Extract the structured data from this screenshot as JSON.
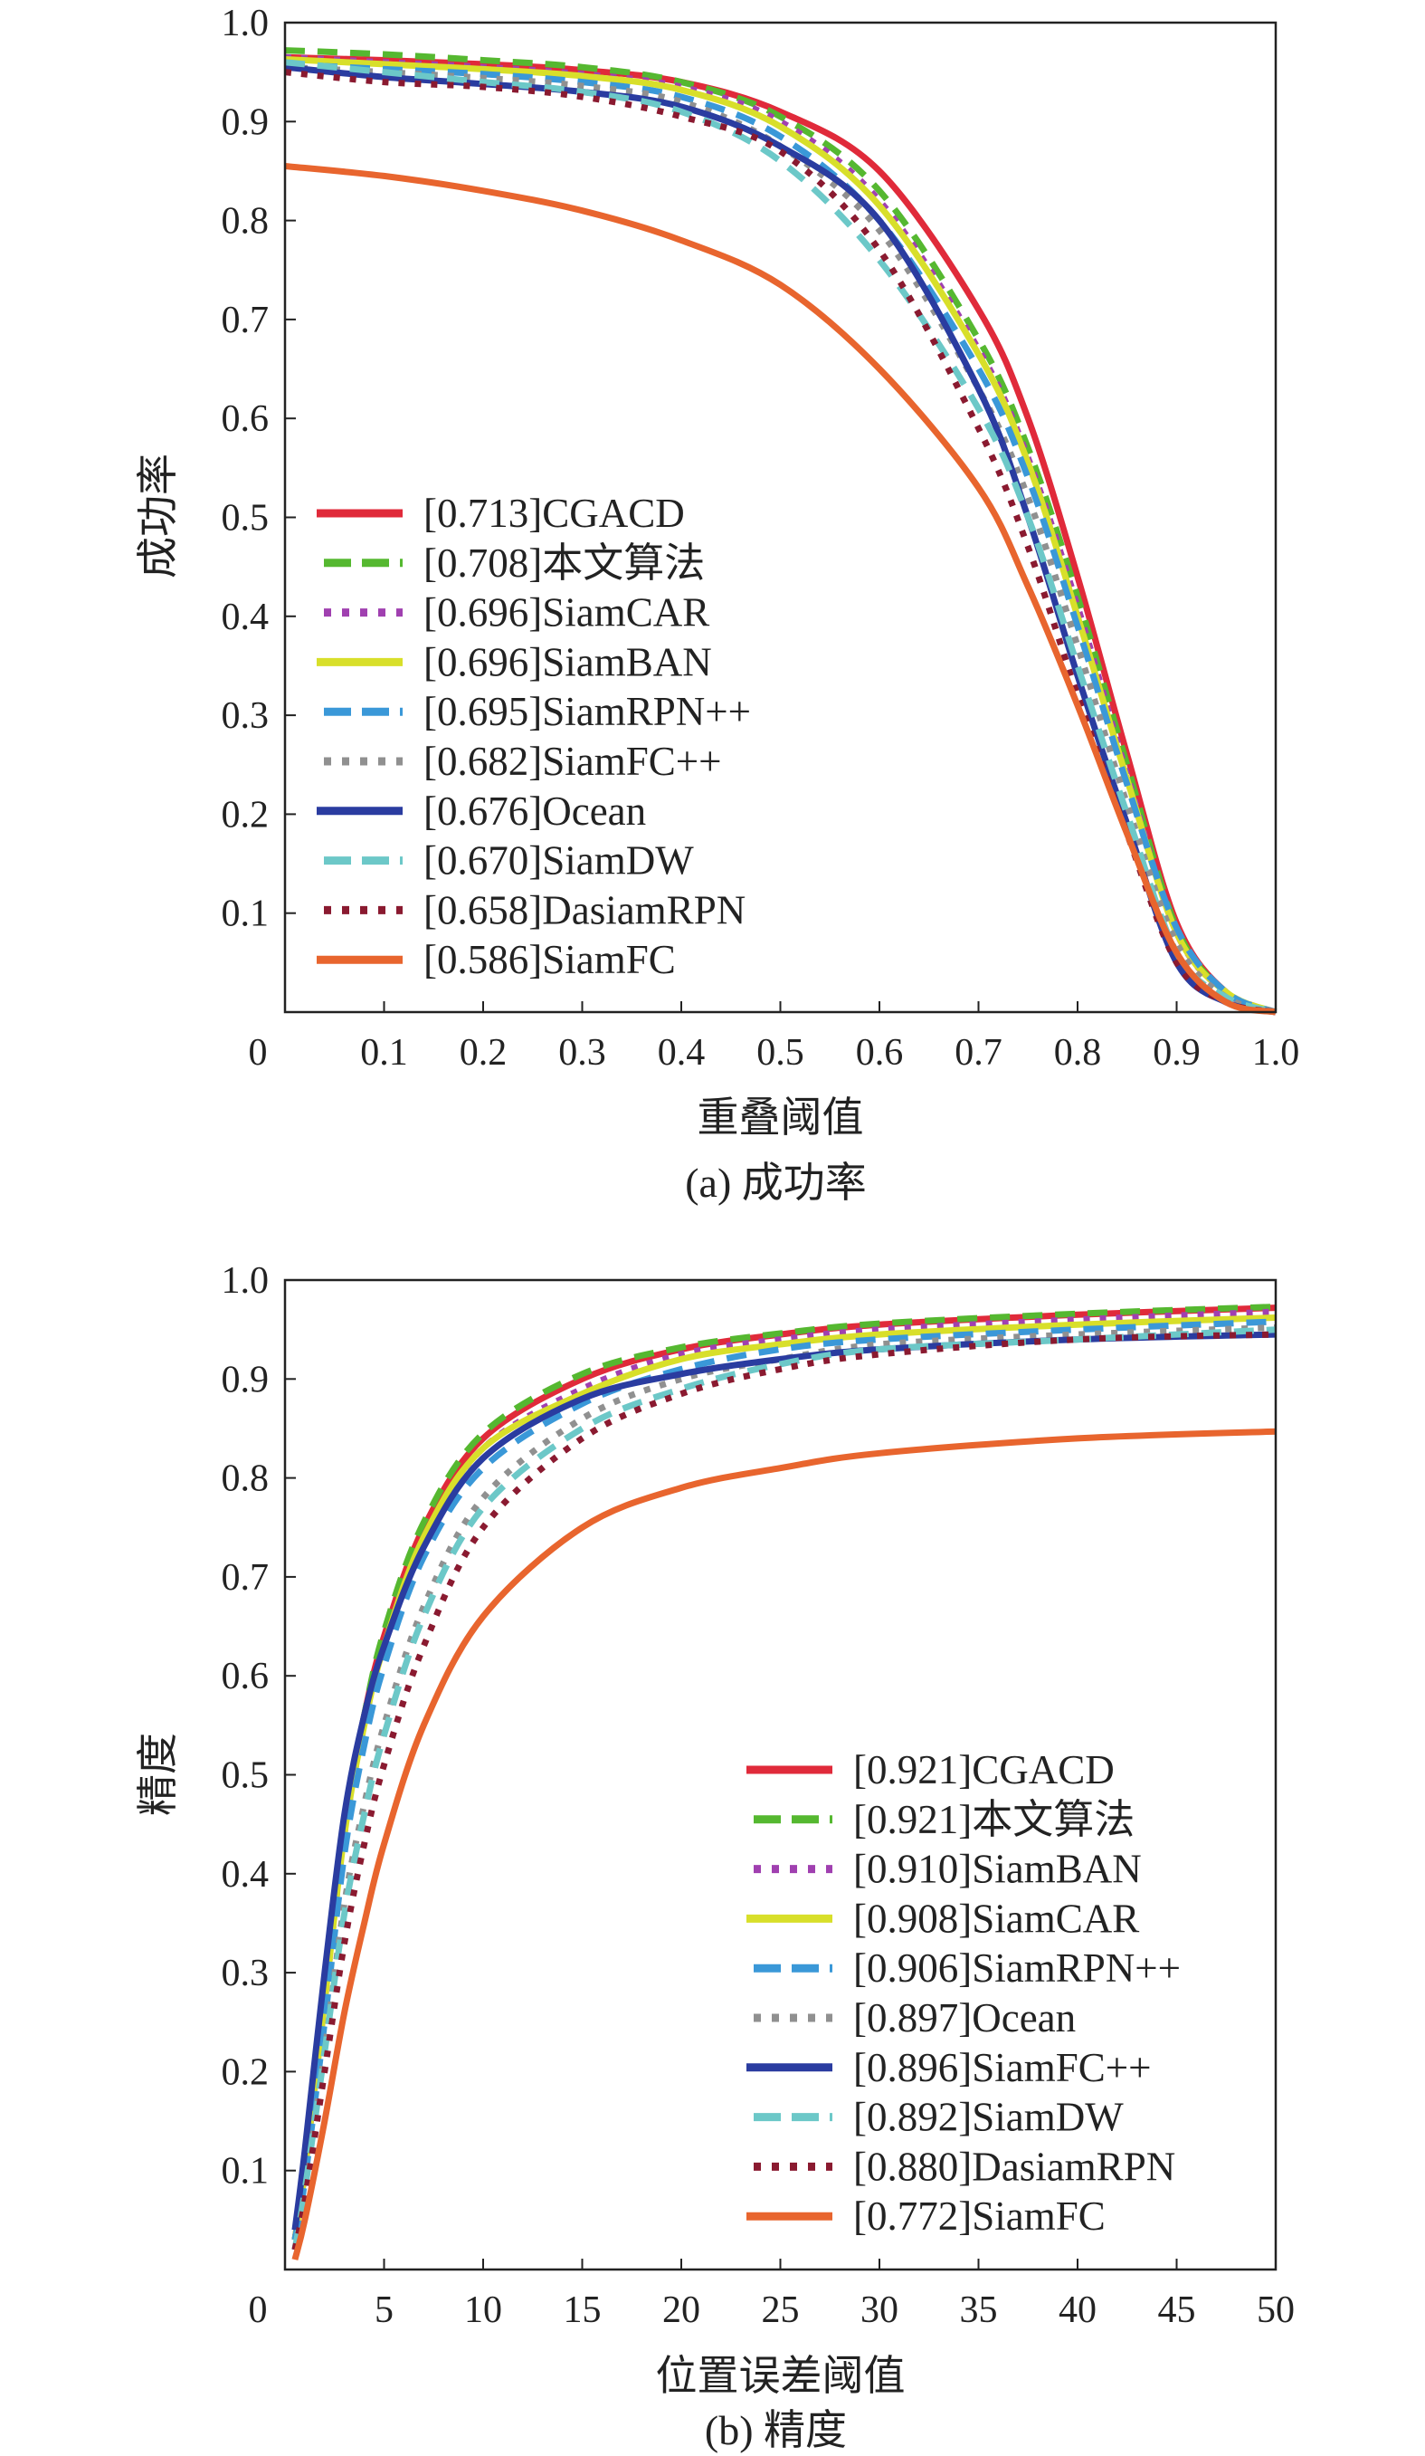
{
  "chart_data": [
    {
      "type": "line",
      "caption": "(a) 成功率",
      "xlabel": "重叠阈值",
      "ylabel": "成功率",
      "xlim": [
        0,
        1.0
      ],
      "ylim": [
        0,
        1.0
      ],
      "origin_label": "0",
      "xticks": [
        "0.1",
        "0.2",
        "0.3",
        "0.4",
        "0.5",
        "0.6",
        "0.7",
        "0.8",
        "0.9",
        "1.0"
      ],
      "yticks": [
        "0.1",
        "0.2",
        "0.3",
        "0.4",
        "0.5",
        "0.6",
        "0.7",
        "0.8",
        "0.9",
        "1.0"
      ],
      "legend_position": "center-left",
      "x": [
        0,
        0.1,
        0.2,
        0.3,
        0.4,
        0.5,
        0.6,
        0.7,
        0.75,
        0.8,
        0.85,
        0.9,
        0.95,
        1.0
      ],
      "series": [
        {
          "name": "[0.713]CGACD",
          "color": "#e02a3a",
          "style": "solid",
          "values": [
            0.965,
            0.962,
            0.958,
            0.952,
            0.94,
            0.91,
            0.85,
            0.71,
            0.6,
            0.44,
            0.26,
            0.09,
            0.02,
            0
          ]
        },
        {
          "name": "[0.708]本文算法",
          "color": "#55b830",
          "style": "dashed",
          "values": [
            0.972,
            0.968,
            0.962,
            0.955,
            0.94,
            0.905,
            0.83,
            0.68,
            0.57,
            0.42,
            0.25,
            0.085,
            0.02,
            0
          ]
        },
        {
          "name": "[0.696]SiamCAR",
          "color": "#a040b0",
          "style": "dotted",
          "values": [
            0.965,
            0.96,
            0.955,
            0.948,
            0.935,
            0.9,
            0.82,
            0.67,
            0.56,
            0.41,
            0.24,
            0.08,
            0.02,
            0
          ]
        },
        {
          "name": "[0.696]SiamBAN",
          "color": "#d8df2a",
          "style": "solid",
          "values": [
            0.963,
            0.958,
            0.953,
            0.946,
            0.932,
            0.895,
            0.815,
            0.665,
            0.555,
            0.4,
            0.235,
            0.08,
            0.02,
            0
          ]
        },
        {
          "name": "[0.695]SiamRPN++",
          "color": "#3a98d8",
          "style": "dashed",
          "values": [
            0.958,
            0.953,
            0.948,
            0.94,
            0.925,
            0.885,
            0.8,
            0.65,
            0.54,
            0.39,
            0.23,
            0.085,
            0.02,
            0
          ]
        },
        {
          "name": "[0.682]SiamFC++",
          "color": "#909090",
          "style": "dotted",
          "values": [
            0.955,
            0.95,
            0.944,
            0.936,
            0.92,
            0.875,
            0.79,
            0.63,
            0.52,
            0.37,
            0.21,
            0.07,
            0.015,
            0
          ]
        },
        {
          "name": "[0.676]Ocean",
          "color": "#2a3ca0",
          "style": "solid",
          "values": [
            0.955,
            0.945,
            0.938,
            0.93,
            0.915,
            0.875,
            0.8,
            0.63,
            0.5,
            0.34,
            0.19,
            0.05,
            0.01,
            0
          ]
        },
        {
          "name": "[0.670]SiamDW",
          "color": "#6cc8c8",
          "style": "dashed",
          "values": [
            0.96,
            0.95,
            0.94,
            0.93,
            0.91,
            0.86,
            0.76,
            0.61,
            0.5,
            0.35,
            0.2,
            0.06,
            0.015,
            0
          ]
        },
        {
          "name": "[0.658]DasiamRPN",
          "color": "#8a1a30",
          "style": "dotted",
          "values": [
            0.95,
            0.94,
            0.935,
            0.925,
            0.905,
            0.87,
            0.77,
            0.59,
            0.47,
            0.32,
            0.18,
            0.05,
            0.01,
            0
          ]
        },
        {
          "name": "[0.586]SiamFC",
          "color": "#e8652e",
          "style": "solid",
          "values": [
            0.855,
            0.845,
            0.83,
            0.81,
            0.78,
            0.735,
            0.65,
            0.53,
            0.43,
            0.31,
            0.18,
            0.06,
            0.01,
            0
          ]
        }
      ]
    },
    {
      "type": "line",
      "caption": "(b) 精度",
      "xlabel": "位置误差阈值",
      "ylabel": "精度",
      "xlim": [
        0,
        50
      ],
      "ylim": [
        0,
        1.0
      ],
      "origin_label": "0",
      "xticks": [
        "5",
        "10",
        "15",
        "20",
        "25",
        "30",
        "35",
        "40",
        "45",
        "50"
      ],
      "yticks": [
        "0.1",
        "0.2",
        "0.3",
        "0.4",
        "0.5",
        "0.6",
        "0.7",
        "0.8",
        "0.9",
        "1.0"
      ],
      "legend_position": "bottom-right",
      "x": [
        0.5,
        1,
        2,
        3,
        4,
        5,
        7,
        10,
        15,
        20,
        25,
        30,
        40,
        50
      ],
      "series": [
        {
          "name": "[0.921]CGACD",
          "color": "#e02a3a",
          "style": "solid",
          "values": [
            0.03,
            0.1,
            0.28,
            0.45,
            0.56,
            0.64,
            0.75,
            0.84,
            0.9,
            0.93,
            0.945,
            0.955,
            0.965,
            0.972
          ]
        },
        {
          "name": "[0.921]本文算法",
          "color": "#55b830",
          "style": "dashed",
          "values": [
            0.03,
            0.1,
            0.28,
            0.45,
            0.56,
            0.645,
            0.755,
            0.845,
            0.905,
            0.932,
            0.946,
            0.956,
            0.966,
            0.973
          ]
        },
        {
          "name": "[0.910]SiamBAN",
          "color": "#a040b0",
          "style": "dotted",
          "values": [
            0.03,
            0.1,
            0.27,
            0.44,
            0.55,
            0.63,
            0.74,
            0.83,
            0.89,
            0.925,
            0.94,
            0.95,
            0.96,
            0.968
          ]
        },
        {
          "name": "[0.908]SiamCAR",
          "color": "#d8df2a",
          "style": "solid",
          "values": [
            0.03,
            0.1,
            0.27,
            0.44,
            0.55,
            0.63,
            0.74,
            0.83,
            0.885,
            0.92,
            0.935,
            0.945,
            0.955,
            0.962
          ]
        },
        {
          "name": "[0.906]SiamRPN++",
          "color": "#3a98d8",
          "style": "dashed",
          "values": [
            0.03,
            0.09,
            0.25,
            0.42,
            0.53,
            0.61,
            0.72,
            0.81,
            0.875,
            0.91,
            0.93,
            0.94,
            0.95,
            0.958
          ]
        },
        {
          "name": "[0.897]Ocean",
          "color": "#909090",
          "style": "dotted",
          "values": [
            0.02,
            0.08,
            0.22,
            0.37,
            0.47,
            0.55,
            0.67,
            0.78,
            0.86,
            0.9,
            0.92,
            0.935,
            0.945,
            0.952
          ]
        },
        {
          "name": "[0.896]SiamFC++",
          "color": "#2a3ca0",
          "style": "solid",
          "values": [
            0.04,
            0.12,
            0.3,
            0.46,
            0.56,
            0.63,
            0.73,
            0.82,
            0.88,
            0.905,
            0.92,
            0.93,
            0.94,
            0.945
          ]
        },
        {
          "name": "[0.892]SiamDW",
          "color": "#6cc8c8",
          "style": "dashed",
          "values": [
            0.02,
            0.08,
            0.22,
            0.36,
            0.46,
            0.54,
            0.66,
            0.77,
            0.85,
            0.89,
            0.915,
            0.93,
            0.94,
            0.95
          ]
        },
        {
          "name": "[0.880]DasiamRPN",
          "color": "#8a1a30",
          "style": "dotted",
          "values": [
            0.02,
            0.07,
            0.2,
            0.33,
            0.43,
            0.51,
            0.63,
            0.75,
            0.84,
            0.885,
            0.91,
            0.925,
            0.94,
            0.945
          ]
        },
        {
          "name": "[0.772]SiamFC",
          "color": "#e8652e",
          "style": "solid",
          "values": [
            0.01,
            0.05,
            0.15,
            0.26,
            0.35,
            0.43,
            0.55,
            0.66,
            0.75,
            0.79,
            0.81,
            0.825,
            0.84,
            0.847
          ]
        }
      ]
    }
  ]
}
